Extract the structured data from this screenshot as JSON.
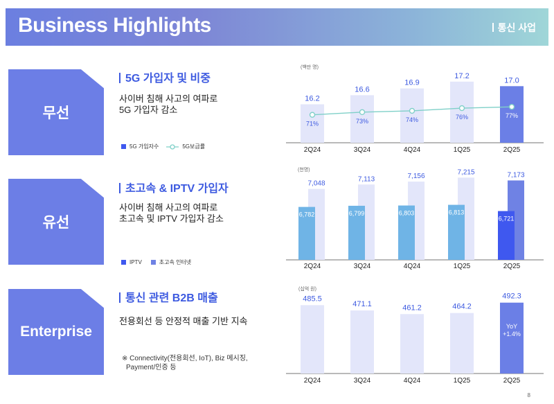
{
  "header": {
    "title": "Business Highlights",
    "subtitle": "통신 사업"
  },
  "sections": {
    "wireless": {
      "tag": "무선",
      "title": "5G 가입자 및 비중",
      "desc_line1": "사이버 침해 사고의 여파로",
      "desc_line2": "5G 가입자 감소",
      "legend_bar": "5G 가입자수",
      "legend_line": "5G보급률"
    },
    "wired": {
      "tag": "유선",
      "title": "초고속 & IPTV 가입자",
      "desc_line1": "사이버 침해 사고의 여파로",
      "desc_line2": "초고속 및 IPTV 가입자 감소",
      "legend_a": "IPTV",
      "legend_b": "초고속 인터넷"
    },
    "enterprise": {
      "tag": "Enterprise",
      "title": "통신 관련 B2B 매출",
      "desc_line1": "전용회선 등 안정적 매출 기반 지속",
      "note_line1": "※ Connectivity(전용회선, IoT), Biz 메시징,",
      "note_line2": "Payment/인증 등"
    }
  },
  "chart_data": [
    {
      "type": "bar",
      "title": "5G 가입자 및 비중",
      "unit": "(백만 명)",
      "categories": [
        "2Q24",
        "3Q24",
        "4Q24",
        "1Q25",
        "2Q25"
      ],
      "series": [
        {
          "name": "5G 가입자수",
          "values": [
            16.2,
            16.6,
            16.9,
            17.2,
            17.0
          ],
          "labels": [
            "16.2",
            "16.6",
            "16.9",
            "17.2",
            "17.0"
          ]
        },
        {
          "name": "5G보급률",
          "type": "line",
          "values": [
            71,
            73,
            74,
            76,
            77
          ],
          "labels": [
            "71%",
            "73%",
            "74%",
            "76%",
            "77%"
          ]
        }
      ]
    },
    {
      "type": "bar",
      "title": "초고속 & IPTV 가입자",
      "unit": "(천명)",
      "categories": [
        "2Q24",
        "3Q24",
        "4Q24",
        "1Q25",
        "2Q25"
      ],
      "series": [
        {
          "name": "IPTV",
          "values": [
            6782,
            6799,
            6803,
            6813,
            6721
          ],
          "labels": [
            "6,782",
            "6,799",
            "6,803",
            "6,813",
            "6,721"
          ]
        },
        {
          "name": "초고속 인터넷",
          "values": [
            7048,
            7113,
            7156,
            7215,
            7173
          ],
          "labels": [
            "7,048",
            "7,113",
            "7,156",
            "7,215",
            "7,173"
          ]
        }
      ]
    },
    {
      "type": "bar",
      "title": "통신 관련 B2B 매출",
      "unit": "(십억 원)",
      "categories": [
        "2Q24",
        "3Q24",
        "4Q24",
        "1Q25",
        "2Q25"
      ],
      "series": [
        {
          "name": "B2B 매출",
          "values": [
            485.5,
            471.1,
            461.2,
            464.2,
            492.3
          ],
          "labels": [
            "485.5",
            "471.1",
            "461.2",
            "464.2",
            "492.3"
          ]
        }
      ],
      "annotation_line1": "YoY",
      "annotation_line2": "+1.4%"
    }
  ],
  "colors": {
    "accent": "#3d5ae0",
    "tag_bg": "#6c7ee6",
    "bar_light": "#e3e6fa",
    "bar_highlight": "#6b7fe6",
    "line_teal": "#7fd0c8",
    "iptv_light": "#6fb4e6",
    "iptv_dark": "#3f58ef",
    "internet": "#6f82e4"
  },
  "page_number": "8"
}
